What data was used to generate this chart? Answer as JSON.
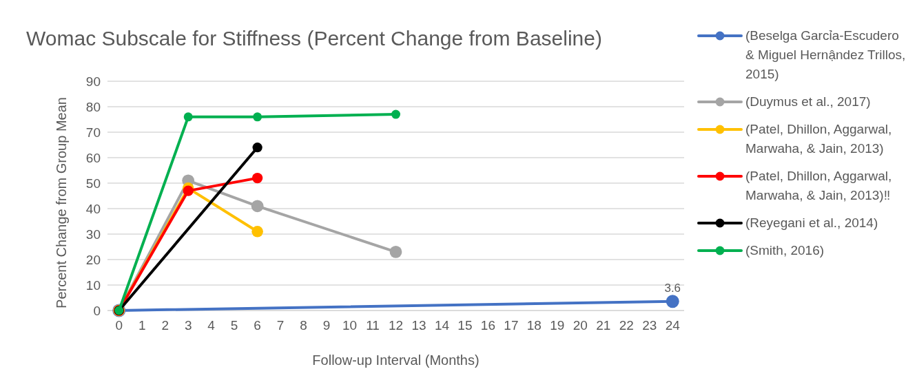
{
  "chart_data": {
    "type": "line",
    "title": "Womac Subscale for Stiffness (Percent Change from Baseline)",
    "xlabel": "Follow-up Interval (Months)",
    "ylabel": "Percent Change from Group Mean",
    "xlim": [
      -0.5,
      24.5
    ],
    "xticks": [
      0,
      1,
      2,
      3,
      4,
      5,
      6,
      7,
      8,
      9,
      10,
      11,
      12,
      13,
      14,
      15,
      16,
      17,
      18,
      19,
      20,
      21,
      22,
      23,
      24
    ],
    "ylim": [
      0,
      90
    ],
    "yticks": [
      0,
      10,
      20,
      30,
      40,
      50,
      60,
      70,
      80,
      90
    ],
    "grid": "y",
    "legend": "right",
    "marker": "circle",
    "line_style": "solid",
    "series": [
      {
        "name": "(Beselga Garcỉa-Escudero & Miguel Hernậndez Trillos, 2015)",
        "color": "#4472c4",
        "x": [
          0,
          24
        ],
        "values": [
          0,
          3.6
        ],
        "value_labels": [
          null,
          "3.6"
        ]
      },
      {
        "name": "(Duymus et al., 2017)",
        "color": "#a5a5a5",
        "x": [
          0,
          3,
          6,
          12
        ],
        "values": [
          0,
          51,
          41,
          23
        ]
      },
      {
        "name": "(Patel, Dhillon, Aggarwal, Marwaha, & Jain, 2013)",
        "color": "#ffc000",
        "x": [
          0,
          3,
          6
        ],
        "values": [
          0,
          48,
          31
        ]
      },
      {
        "name": "(Patel, Dhillon, Aggarwal, Marwaha, & Jain, 2013)‼",
        "color": "#ff0000",
        "x": [
          0,
          3,
          6
        ],
        "values": [
          0,
          47,
          52
        ]
      },
      {
        "name": "(Reyegani et al., 2014)",
        "color": "#000000",
        "x": [
          0,
          6
        ],
        "values": [
          0,
          64
        ]
      },
      {
        "name": "(Smith, 2016)",
        "color": "#00b050",
        "x": [
          0,
          3,
          6,
          12
        ],
        "values": [
          0,
          76,
          76,
          77
        ]
      }
    ]
  }
}
